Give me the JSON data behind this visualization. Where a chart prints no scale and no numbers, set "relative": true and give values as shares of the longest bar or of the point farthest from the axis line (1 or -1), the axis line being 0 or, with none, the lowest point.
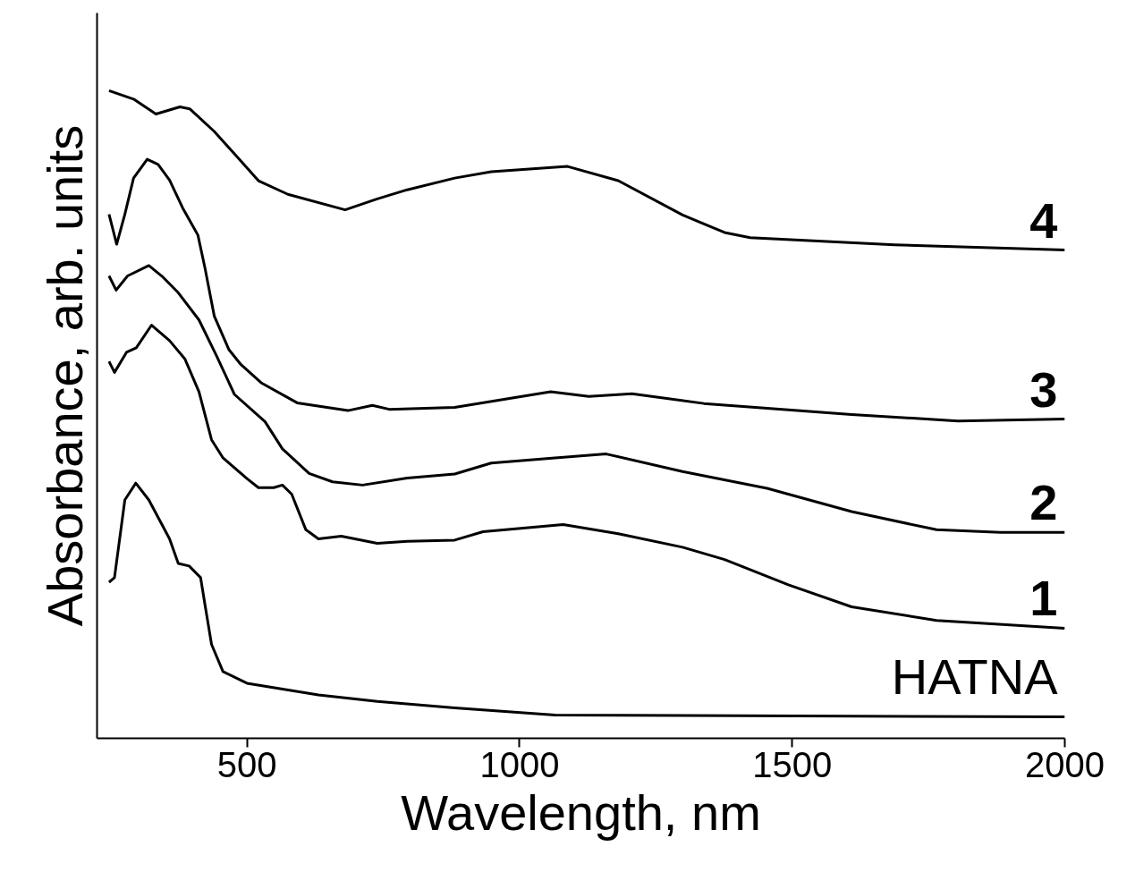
{
  "chart_data": {
    "type": "line",
    "relative": true,
    "xlabel": "Wavelength, nm",
    "ylabel": "Absorbance, arb. units",
    "xlim": [
      225,
      2000
    ],
    "xticks": [
      500,
      1000,
      1500,
      2000
    ],
    "grid": false,
    "marker": "none",
    "line_style": "solid",
    "series": [
      {
        "name": "4",
        "color": "#000000",
        "x": [
          247,
          292,
          333,
          377,
          395,
          440,
          484,
          521,
          575,
          680,
          739,
          794,
          881,
          948,
          1088,
          1181,
          1299,
          1376,
          1423,
          1688,
          2000
        ],
        "values": [
          1.0,
          0.987,
          0.964,
          0.975,
          0.972,
          0.937,
          0.896,
          0.861,
          0.84,
          0.816,
          0.833,
          0.847,
          0.865,
          0.875,
          0.883,
          0.861,
          0.808,
          0.781,
          0.773,
          0.762,
          0.754
        ]
      },
      {
        "name": "3",
        "color": "#000000",
        "x": [
          247,
          261,
          276,
          292,
          317,
          337,
          358,
          382,
          410,
          423,
          440,
          467,
          489,
          526,
          592,
          685,
          730,
          761,
          881,
          1057,
          1127,
          1206,
          1338,
          1609,
          1804,
          2000
        ],
        "values": [
          0.809,
          0.763,
          0.809,
          0.865,
          0.894,
          0.886,
          0.862,
          0.819,
          0.777,
          0.726,
          0.652,
          0.6,
          0.577,
          0.549,
          0.518,
          0.506,
          0.514,
          0.508,
          0.511,
          0.535,
          0.528,
          0.532,
          0.517,
          0.5,
          0.49,
          0.493
        ]
      },
      {
        "name": "2",
        "color": "#000000",
        "x": [
          247,
          260,
          281,
          320,
          346,
          374,
          412,
          444,
          477,
          533,
          565,
          614,
          657,
          712,
          794,
          881,
          948,
          1065,
          1159,
          1299,
          1454,
          1609,
          1765,
          1882,
          2000
        ],
        "values": [
          0.714,
          0.692,
          0.714,
          0.73,
          0.712,
          0.688,
          0.646,
          0.591,
          0.531,
          0.489,
          0.447,
          0.409,
          0.396,
          0.391,
          0.402,
          0.408,
          0.425,
          0.433,
          0.439,
          0.412,
          0.386,
          0.35,
          0.322,
          0.318,
          0.318
        ]
      },
      {
        "name": "1",
        "color": "#000000",
        "x": [
          247,
          257,
          279,
          297,
          325,
          358,
          386,
          412,
          435,
          456,
          500,
          521,
          549,
          565,
          582,
          608,
          631,
          673,
          739,
          794,
          881,
          933,
          1080,
          1181,
          1299,
          1376,
          1493,
          1609,
          1765,
          2000
        ],
        "values": [
          0.582,
          0.565,
          0.596,
          0.603,
          0.638,
          0.614,
          0.586,
          0.535,
          0.461,
          0.433,
          0.401,
          0.387,
          0.387,
          0.391,
          0.377,
          0.322,
          0.308,
          0.312,
          0.301,
          0.304,
          0.306,
          0.319,
          0.33,
          0.316,
          0.295,
          0.276,
          0.237,
          0.203,
          0.182,
          0.17
        ]
      },
      {
        "name": "HATNA",
        "color": "#000000",
        "x": [
          247,
          257,
          276,
          296,
          320,
          358,
          374,
          394,
          415,
          423,
          435,
          456,
          500,
          631,
          739,
          881,
          1065,
          2000
        ],
        "values": [
          0.241,
          0.248,
          0.368,
          0.394,
          0.368,
          0.308,
          0.27,
          0.266,
          0.248,
          0.206,
          0.145,
          0.103,
          0.085,
          0.067,
          0.057,
          0.047,
          0.036,
          0.033
        ]
      }
    ]
  }
}
